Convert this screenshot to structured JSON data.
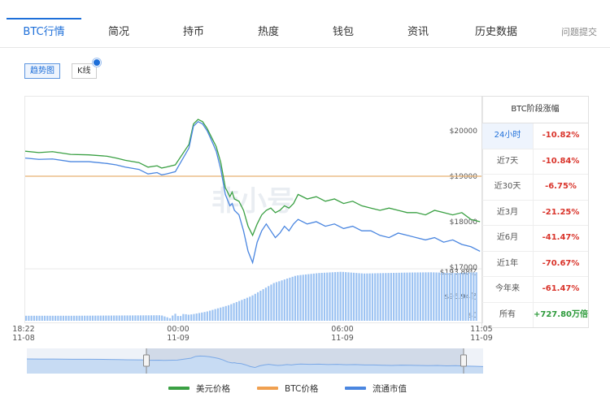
{
  "tabs": [
    {
      "label": "BTC行情",
      "active": true
    },
    {
      "label": "简况"
    },
    {
      "label": "持币"
    },
    {
      "label": "热度"
    },
    {
      "label": "钱包"
    },
    {
      "label": "资讯"
    },
    {
      "label": "历史数据"
    },
    {
      "label": "问题提交"
    }
  ],
  "toggles": {
    "trend": "趋势图",
    "kline": "K线"
  },
  "watermark": "非小号",
  "range_table": {
    "title": "BTC阶段涨幅",
    "rows": [
      {
        "label": "24小时",
        "value": "-10.82%"
      },
      {
        "label": "近7天",
        "value": "-10.84%"
      },
      {
        "label": "近30天",
        "value": "-6.75%"
      },
      {
        "label": "近3月",
        "value": "-21.25%"
      },
      {
        "label": "近6月",
        "value": "-41.47%"
      },
      {
        "label": "近1年",
        "value": "-70.67%"
      },
      {
        "label": "今年来",
        "value": "-61.47%"
      },
      {
        "label": "所有",
        "value": "+727.80万倍"
      }
    ]
  },
  "x_ticks": [
    {
      "time": "18:22",
      "date": "11-08"
    },
    {
      "time": "00:00",
      "date": "11-09"
    },
    {
      "time": "06:00",
      "date": "11-09"
    },
    {
      "time": "11:05",
      "date": "11-09"
    }
  ],
  "legend": [
    {
      "label": "美元价格",
      "color": "#3aa043"
    },
    {
      "label": "BTC价格",
      "color": "#f0a050"
    },
    {
      "label": "流通市值",
      "color": "#4a86e0"
    }
  ],
  "chart_data": {
    "type": "line",
    "price_axis": {
      "ticks": [
        "$20000",
        "$19000",
        "$18000",
        "$17000"
      ],
      "ylim": [
        17000,
        20500
      ]
    },
    "volume_axis": {
      "ticks": [
        "$193.88亿",
        "$96.94亿",
        "$0"
      ],
      "ylim": [
        0,
        193.88
      ]
    },
    "btc_price_reference": 19000,
    "series": [
      {
        "name": "美元价格",
        "color": "#3aa043",
        "x": [
          0,
          0.03,
          0.06,
          0.1,
          0.14,
          0.18,
          0.2,
          0.22,
          0.25,
          0.27,
          0.29,
          0.3,
          0.31,
          0.33,
          0.36,
          0.37,
          0.38,
          0.39,
          0.4,
          0.41,
          0.42,
          0.43,
          0.44,
          0.45,
          0.455,
          0.46,
          0.47,
          0.48,
          0.49,
          0.5,
          0.51,
          0.52,
          0.53,
          0.54,
          0.55,
          0.56,
          0.57,
          0.58,
          0.59,
          0.6,
          0.62,
          0.64,
          0.66,
          0.68,
          0.7,
          0.72,
          0.74,
          0.76,
          0.78,
          0.8,
          0.82,
          0.84,
          0.86,
          0.88,
          0.9,
          0.92,
          0.94,
          0.96,
          0.98,
          1.0
        ],
        "values": [
          19550,
          19520,
          19540,
          19480,
          19470,
          19440,
          19400,
          19350,
          19300,
          19200,
          19230,
          19180,
          19200,
          19250,
          19700,
          20150,
          20250,
          20200,
          20050,
          19850,
          19650,
          19300,
          18750,
          18550,
          18650,
          18500,
          18450,
          18250,
          17900,
          17700,
          17950,
          18150,
          18250,
          18300,
          18200,
          18250,
          18350,
          18300,
          18400,
          18600,
          18500,
          18550,
          18450,
          18500,
          18400,
          18450,
          18350,
          18300,
          18250,
          18300,
          18250,
          18200,
          18200,
          18150,
          18250,
          18200,
          18150,
          18200,
          18050,
          18000
        ]
      },
      {
        "name": "流通市值",
        "color": "#4a86e0",
        "x": [
          0,
          0.03,
          0.06,
          0.1,
          0.14,
          0.18,
          0.2,
          0.22,
          0.25,
          0.27,
          0.29,
          0.3,
          0.31,
          0.33,
          0.36,
          0.37,
          0.38,
          0.39,
          0.4,
          0.41,
          0.42,
          0.43,
          0.44,
          0.45,
          0.455,
          0.46,
          0.47,
          0.48,
          0.49,
          0.5,
          0.51,
          0.52,
          0.53,
          0.54,
          0.55,
          0.56,
          0.57,
          0.58,
          0.59,
          0.6,
          0.62,
          0.64,
          0.66,
          0.68,
          0.7,
          0.72,
          0.74,
          0.76,
          0.78,
          0.8,
          0.82,
          0.84,
          0.86,
          0.88,
          0.9,
          0.92,
          0.94,
          0.96,
          0.98,
          1.0
        ],
        "values": [
          19400,
          19370,
          19380,
          19320,
          19320,
          19280,
          19250,
          19200,
          19150,
          19050,
          19080,
          19030,
          19050,
          19100,
          19620,
          20100,
          20200,
          20150,
          20000,
          19780,
          19550,
          19150,
          18600,
          18350,
          18400,
          18250,
          18150,
          17800,
          17350,
          17100,
          17550,
          17800,
          17950,
          17800,
          17650,
          17750,
          17900,
          17800,
          17950,
          18050,
          17950,
          18000,
          17900,
          17950,
          17850,
          17900,
          17800,
          17800,
          17700,
          17650,
          17750,
          17700,
          17650,
          17600,
          17650,
          17550,
          17600,
          17500,
          17450,
          17350
        ]
      }
    ],
    "volume": {
      "name": "流通市值",
      "x": [
        0,
        0.1,
        0.2,
        0.3,
        0.32,
        0.33,
        0.34,
        0.35,
        0.36,
        0.37,
        0.4,
        0.45,
        0.5,
        0.55,
        0.6,
        0.65,
        0.7,
        0.75,
        0.8,
        0.85,
        0.9,
        0.95,
        1.0
      ],
      "values": [
        20,
        20,
        21,
        22,
        10,
        30,
        15,
        28,
        24,
        26,
        36,
        62,
        98,
        150,
        180,
        190,
        195,
        188,
        190,
        192,
        193,
        190,
        193
      ]
    }
  }
}
